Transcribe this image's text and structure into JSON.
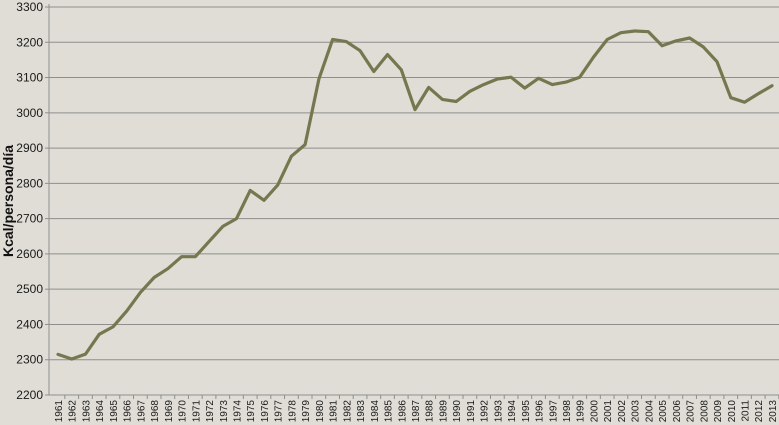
{
  "chart_data": {
    "type": "line",
    "title": "",
    "xlabel": "",
    "ylabel": "Kcal/persona/día",
    "ylim": [
      2200,
      3300
    ],
    "yticks": [
      2200,
      2300,
      2400,
      2500,
      2600,
      2700,
      2800,
      2900,
      3000,
      3100,
      3200,
      3300
    ],
    "grid": true,
    "legend": null,
    "x": [
      1961,
      1962,
      1963,
      1964,
      1965,
      1966,
      1967,
      1968,
      1969,
      1970,
      1971,
      1972,
      1973,
      1974,
      1975,
      1976,
      1977,
      1978,
      1979,
      1980,
      1981,
      1982,
      1983,
      1984,
      1985,
      1986,
      1987,
      1988,
      1989,
      1990,
      1991,
      1992,
      1993,
      1994,
      1995,
      1996,
      1997,
      1998,
      1999,
      2000,
      2001,
      2002,
      2003,
      2004,
      2005,
      2006,
      2007,
      2008,
      2009,
      2010,
      2011,
      2012,
      2013
    ],
    "series": [
      {
        "name": "Kcal/persona/día",
        "color": "#75784f",
        "values": [
          2315,
          2302,
          2316,
          2372,
          2393,
          2438,
          2491,
          2533,
          2558,
          2592,
          2592,
          2635,
          2678,
          2700,
          2780,
          2752,
          2795,
          2877,
          2910,
          3096,
          3208,
          3202,
          3176,
          3117,
          3165,
          3122,
          3009,
          3072,
          3038,
          3032,
          3061,
          3080,
          3096,
          3101,
          3070,
          3098,
          3080,
          3087,
          3101,
          3158,
          3208,
          3227,
          3232,
          3230,
          3190,
          3204,
          3212,
          3187,
          3145,
          3043,
          3030,
          3054,
          3077
        ]
      }
    ]
  },
  "colors": {
    "background": "#dfddd6",
    "grid": "#8e8e8e",
    "line": "#75784f",
    "axis": "#8e8e8e"
  }
}
